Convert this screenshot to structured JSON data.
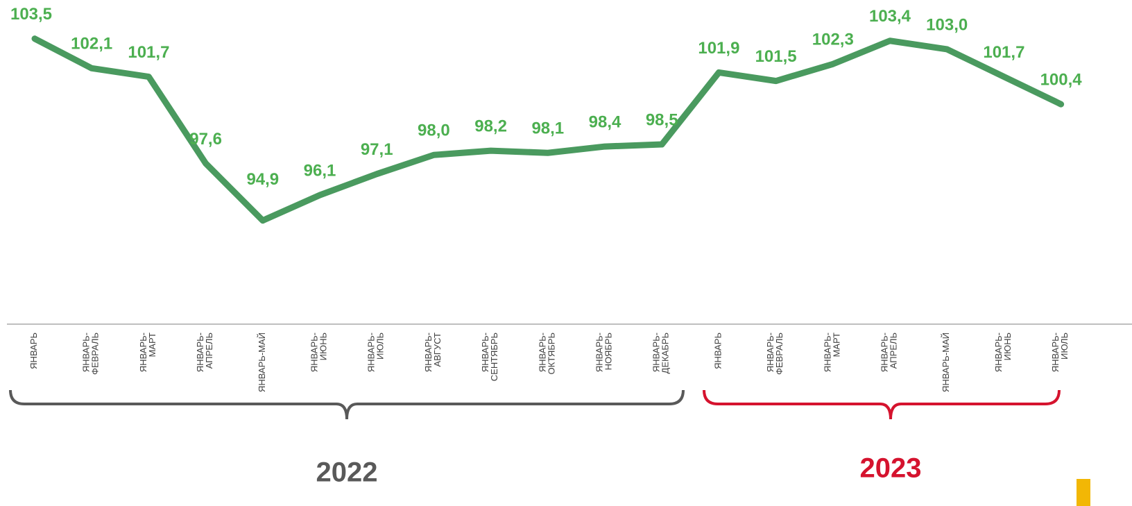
{
  "chart_data": {
    "type": "line",
    "categories": [
      "ЯНВАРЬ",
      "ЯНВАРЬ-\nФЕВРАЛЬ",
      "ЯНВАРЬ-\nМАРТ",
      "ЯНВАРЬ-\nАПРЕЛЬ",
      "ЯНВАРЬ-МАЙ",
      "ЯНВАРЬ-\nИЮНЬ",
      "ЯНВАРЬ-\nИЮЛЬ",
      "ЯНВАРЬ-\nАВГУСТ",
      "ЯНВАРЬ-\nСЕНТЯБРЬ",
      "ЯНВАРЬ-\nОКТЯБРЬ",
      "ЯНВАРЬ-\nНОЯБРЬ",
      "ЯНВАРЬ-\nДЕКАБРЬ",
      "ЯНВАРЬ",
      "ЯНВАРЬ-\nФЕВРАЛЬ",
      "ЯНВАРЬ-\nМАРТ",
      "ЯНВАРЬ-\nАПРЕЛЬ",
      "ЯНВАРЬ-МАЙ",
      "ЯНВАРЬ-\nИЮНЬ",
      "ЯНВАРЬ-\nИЮЛЬ"
    ],
    "values": [
      103.5,
      102.1,
      101.7,
      97.6,
      94.9,
      96.1,
      97.1,
      98.0,
      98.2,
      98.1,
      98.4,
      98.5,
      101.9,
      101.5,
      102.3,
      103.4,
      103.0,
      101.7,
      100.4
    ],
    "value_labels": [
      "103,5",
      "102,1",
      "101,7",
      "97,6",
      "94,9",
      "96,1",
      "97,1",
      "98,0",
      "98,2",
      "98,1",
      "98,4",
      "98,5",
      "101,9",
      "101,5",
      "102,3",
      "103,4",
      "103,0",
      "101,7",
      "100,4"
    ],
    "color": "#4a9a5f",
    "ylim": [
      90,
      105
    ],
    "groups": [
      {
        "label": "2022",
        "color": "#595959"
      },
      {
        "label": "2023",
        "color": "#d5132e"
      }
    ]
  }
}
